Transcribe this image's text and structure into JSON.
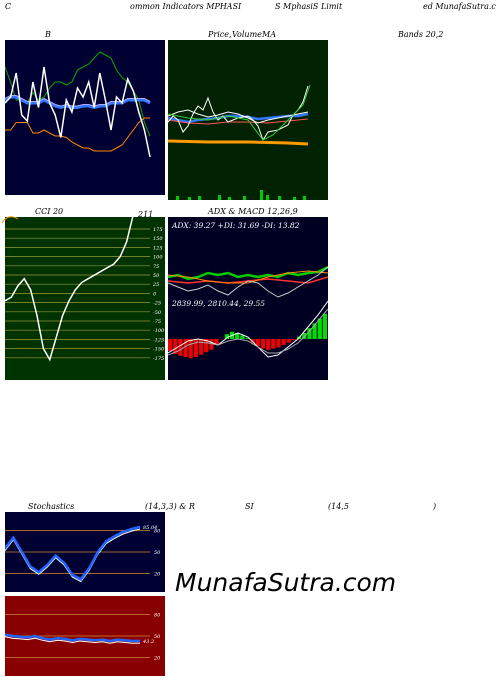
{
  "header": {
    "c": "C",
    "common": "ommon  Indicators MPHASI",
    "s_mphasis": "S MphasiS Limit",
    "ed": "ed MunafaSutra.c"
  },
  "panel_b": {
    "label": "B",
    "background": "#000033"
  },
  "panel_price": {
    "label_price": "Price,",
    "label_volume": "Volume",
    "label_ma": "MA",
    "background": "#002200"
  },
  "bands": {
    "label": "Bands 20,2"
  },
  "cci": {
    "label": "CCI 20",
    "value": "211",
    "background": "#003300",
    "ticks": [
      "175",
      "150",
      "125",
      "100",
      "75",
      "50",
      "25",
      "0",
      "-25",
      "-50",
      "-75",
      "-100",
      "-125",
      "-150",
      "-175"
    ]
  },
  "adx_macd": {
    "label": "ADX  & MACD 12,26,9",
    "adx_text": "ADX: 39.27  +DI: 31.69 -DI: 13.82",
    "macd_text": "2839.99,  2810.44,  29.55",
    "background": "#000022"
  },
  "stoch": {
    "label_left": "Stochastics",
    "label_mid": "(14,3,3) & R",
    "label_si": "SI",
    "label_right": "(14,5",
    "label_paren": ")",
    "value": "85.04",
    "ticks": [
      "80",
      "50",
      "20"
    ],
    "background": "#000033"
  },
  "rsi": {
    "value": "43.2",
    "ticks": [
      "80",
      "50",
      "20"
    ],
    "background": "#880000"
  },
  "brand": "MunafaSutra.com",
  "chart_data": [
    {
      "type": "line",
      "name": "Bollinger Bands",
      "series": [
        {
          "values": [
            82,
            72,
            60,
            60,
            58,
            65,
            60,
            62,
            68,
            72,
            72,
            70,
            72,
            80,
            82,
            84,
            88,
            92,
            90,
            88,
            80,
            75,
            72,
            66,
            60,
            45,
            36
          ]
        },
        {
          "values": [
            60,
            62,
            62,
            60,
            58,
            58,
            58,
            60,
            58,
            56,
            55,
            56,
            55,
            55,
            56,
            56,
            55,
            56,
            56,
            58,
            58,
            58,
            60,
            60,
            60,
            60,
            58
          ]
        },
        {
          "values": [
            40,
            40,
            45,
            45,
            45,
            38,
            38,
            40,
            38,
            36,
            36,
            35,
            32,
            30,
            28,
            28,
            26,
            26,
            26,
            26,
            28,
            30,
            35,
            40,
            45,
            48,
            48
          ]
        },
        {
          "values": [
            58,
            62,
            78,
            50,
            46,
            72,
            55,
            82,
            58,
            50,
            35,
            60,
            52,
            68,
            62,
            72,
            55,
            78,
            60,
            40,
            62,
            58,
            74,
            66,
            52,
            40,
            22
          ]
        }
      ]
    },
    {
      "type": "line",
      "name": "CCI 20",
      "values": [
        -20,
        -10,
        20,
        40,
        10,
        -60,
        -150,
        -180,
        -120,
        -60,
        -20,
        10,
        30,
        40,
        50,
        60,
        70,
        80,
        100,
        140,
        211
      ]
    },
    {
      "type": "bar",
      "name": "MACD histogram",
      "values": [
        -20,
        -25,
        -28,
        -30,
        -32,
        -30,
        -26,
        -22,
        -18,
        -10,
        0,
        8,
        12,
        10,
        6,
        2,
        -6,
        -12,
        -16,
        -18,
        -16,
        -14,
        -10,
        -6,
        -2,
        4,
        10,
        18,
        26,
        34,
        42
      ]
    },
    {
      "type": "line",
      "name": "Stochastics",
      "values": [
        55,
        70,
        50,
        30,
        22,
        32,
        45,
        35,
        18,
        12,
        28,
        50,
        65,
        72,
        78,
        82,
        85
      ]
    },
    {
      "type": "line",
      "name": "RSI",
      "values": [
        52,
        50,
        49,
        48,
        50,
        47,
        45,
        47,
        46,
        44,
        46,
        45,
        44,
        45,
        43,
        45,
        44,
        43,
        43.2
      ]
    }
  ]
}
